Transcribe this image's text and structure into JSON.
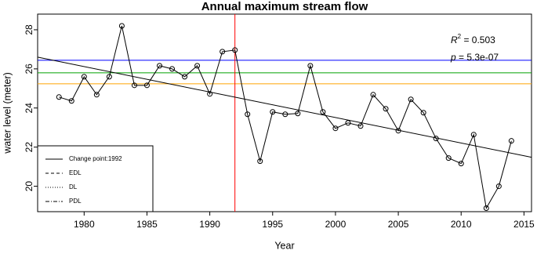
{
  "chart_data": {
    "type": "line",
    "title": "Annual maximum stream flow",
    "x_label": "Year",
    "y_label": "water level (meter)",
    "x": [
      1978,
      1979,
      1980,
      1981,
      1982,
      1983,
      1984,
      1985,
      1986,
      1987,
      1988,
      1989,
      1990,
      1991,
      1992,
      1993,
      1994,
      1995,
      1996,
      1997,
      1998,
      1999,
      2000,
      2001,
      2002,
      2003,
      2004,
      2005,
      2006,
      2007,
      2008,
      2009,
      2010,
      2011,
      2012,
      2013,
      2014
    ],
    "series": [
      {
        "color": "#000000",
        "values": [
          24.56,
          24.36,
          25.6,
          24.68,
          25.6,
          28.2,
          25.16,
          25.16,
          26.16,
          26.0,
          25.6,
          26.16,
          24.72,
          26.88,
          26.96,
          23.68,
          21.28,
          23.8,
          23.68,
          23.72,
          26.16,
          23.8,
          22.96,
          23.24,
          23.08,
          24.68,
          23.96,
          22.84,
          24.44,
          23.76,
          22.44,
          21.44,
          21.16,
          22.64,
          18.88,
          20.0,
          22.32
        ]
      }
    ],
    "trend": {
      "color": "#000000",
      "x": [
        1976.3,
        2015.6
      ],
      "y": [
        26.6,
        21.48
      ]
    },
    "hlines": [
      {
        "value": 26.44,
        "color": "#0000ff"
      },
      {
        "value": 25.8,
        "color": "#00a000"
      },
      {
        "value": 25.24,
        "color": "#ffa500"
      }
    ],
    "vline": {
      "value": 1992,
      "color": "#ff0000"
    },
    "annotations": [
      {
        "italic": "R",
        "sup": "2",
        "text": " = 0.503"
      },
      {
        "italic": "p",
        "text": " = 5.3e-07"
      }
    ],
    "legend": {
      "corner": "bottom-left",
      "entries": [
        {
          "name": "Change point:1992",
          "dash": "solid"
        },
        {
          "name": "EDL",
          "dash": "dashed"
        },
        {
          "name": "DL",
          "dash": "dotted"
        },
        {
          "name": "PDL",
          "dash": "dashdot"
        }
      ]
    },
    "xlim": [
      1976.3,
      2015.6
    ],
    "ylim": [
      18.7,
      28.8
    ],
    "xticks": [
      1980,
      1985,
      1990,
      1995,
      2000,
      2005,
      2010,
      2015
    ],
    "yticks": [
      20,
      22,
      24,
      26,
      28
    ]
  }
}
